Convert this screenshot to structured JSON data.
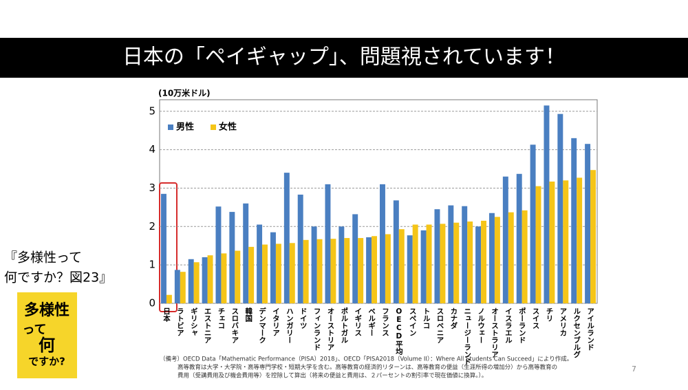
{
  "slide": {
    "title": "日本の「ペイギャップ」、問題視されています！",
    "page": "7",
    "note": [
      "（備考）OECD Data「Mathematic Performance（PISA）2018」、OECD「PISA2018（Volume II）：Where All Students Can Succeed」により作成。",
      "高等教育は大学・大学院・高等専門学校・短期大学を含む。高等教育の経済的リターンは、高等教育の便益（生涯所得の増加分）から高等教育の",
      "費用（受講費用及び機会費用等）を控除して算出（将来の便益と費用は、２パーセントの割引率で現在価値に換算。）。"
    ]
  },
  "book": {
    "caption": [
      "『多様性って",
      "何ですか？図23』"
    ],
    "cover": [
      "多様性",
      "って",
      "何",
      "ですか?"
    ]
  },
  "chart_data": {
    "type": "bar",
    "y_label": "(10万米ドル)",
    "categories": [
      "日本",
      "ラトビア",
      "ギリシャ",
      "エストニア",
      "チェコ",
      "スロバキア",
      "韓国",
      "デンマーク",
      "イタリア",
      "ハンガリー",
      "ドイツ",
      "フィンランド",
      "オーストリア",
      "ポルトガル",
      "イギリス",
      "ベルギー",
      "フランス",
      "OECD平均",
      "スペイン",
      "トルコ",
      "スロベニア",
      "カナダ",
      "ニュージーランド",
      "ノルウェー",
      "オーストラリア",
      "イスラエル",
      "ポーランド",
      "スイス",
      "チリ",
      "アメリカ",
      "ルクセンブルグ",
      "アイルランド"
    ],
    "series": [
      {
        "name": "男性",
        "color": "#4a7fc1",
        "values": [
          2.85,
          0.87,
          1.15,
          1.2,
          2.52,
          2.38,
          2.6,
          2.05,
          1.85,
          3.4,
          2.83,
          2.0,
          3.1,
          2.0,
          2.32,
          1.72,
          3.1,
          2.68,
          1.77,
          1.9,
          2.45,
          2.55,
          2.53,
          2.0,
          2.35,
          3.3,
          3.37,
          4.13,
          5.15,
          4.93,
          4.3,
          4.15
        ]
      },
      {
        "name": "女性",
        "color": "#f5c518",
        "values": [
          0.22,
          0.82,
          1.07,
          1.25,
          1.3,
          1.37,
          1.47,
          1.53,
          1.55,
          1.57,
          1.65,
          1.67,
          1.68,
          1.7,
          1.7,
          1.75,
          1.8,
          1.93,
          2.05,
          2.05,
          2.07,
          2.1,
          2.13,
          2.15,
          2.25,
          2.37,
          2.42,
          3.05,
          3.17,
          3.2,
          3.27,
          3.47
        ]
      }
    ],
    "ylim": [
      0,
      5.3
    ],
    "yticks": [
      0,
      1,
      2,
      3,
      4,
      5
    ],
    "grid": true,
    "legend": "top-left"
  }
}
